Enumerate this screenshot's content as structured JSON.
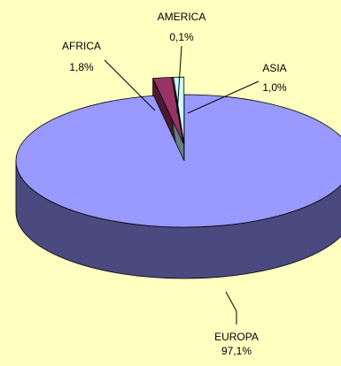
{
  "chart_data": {
    "type": "pie",
    "style": "3d-exploded",
    "title": "",
    "slices": [
      {
        "label": "EUROPA",
        "value_label": "97,1%",
        "value": 97.1,
        "color": "#9999FF",
        "side_color": "#4A4A80"
      },
      {
        "label": "AFRICA",
        "value_label": "1,8%",
        "value": 1.8,
        "color": "#993366",
        "side_color": "#4D1A33"
      },
      {
        "label": "AMERICA",
        "value_label": "0,1%",
        "value": 0.1,
        "color": "#FFFFCC",
        "side_color": "#808066"
      },
      {
        "label": "ASIA",
        "value_label": "1,0%",
        "value": 1.0,
        "color": "#CCFFFF",
        "side_color": "#668080"
      }
    ],
    "background": "#FFFFC0",
    "legend": "none"
  }
}
